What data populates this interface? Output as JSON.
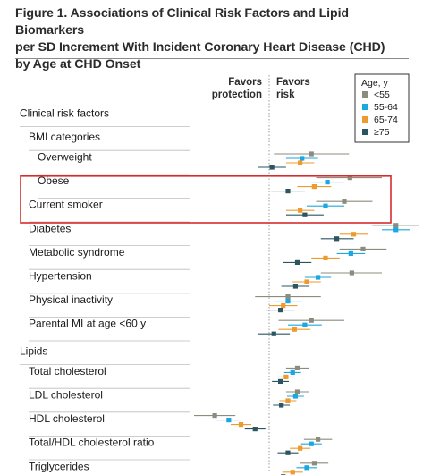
{
  "figure": {
    "title_lines": [
      "Figure 1. Associations of Clinical Risk Factors and Lipid Biomarkers",
      "per SD Increment With Incident Coronary Heart Disease (CHD)",
      "by Age at CHD Onset"
    ]
  },
  "colors": {
    "<55": "#8c8c7e",
    "55-64": "#1ba7e0",
    "65-74": "#ef9a2c",
    "≥75": "#2b5560",
    "highlight_box": "#d62c2c",
    "reference_line": "#9a9a9a"
  },
  "chart_data": {
    "type": "forest",
    "title": "",
    "header_left": [
      "Favors",
      "protection"
    ],
    "header_right": [
      "Favors",
      "risk"
    ],
    "legend": {
      "title": "Age, y",
      "entries": [
        "<55",
        "55-64",
        "65-74",
        "≥75"
      ],
      "position": "top-right"
    },
    "reference_value": 0,
    "xlim": [
      -0.9,
      1.5
    ],
    "highlighted_rows": [
      "Obese",
      "Current smoker"
    ],
    "rows": [
      {
        "label": "Clinical risk factors",
        "level": 0,
        "values": null
      },
      {
        "label": "BMI categories",
        "level": 1,
        "values": null
      },
      {
        "label": "Overweight",
        "level": 2,
        "values": [
          {
            "est": 0.45,
            "lo": 0.05,
            "hi": 0.85
          },
          {
            "est": 0.35,
            "lo": 0.18,
            "hi": 0.52
          },
          {
            "est": 0.33,
            "lo": 0.18,
            "hi": 0.48
          },
          {
            "est": 0.03,
            "lo": -0.12,
            "hi": 0.18
          }
        ]
      },
      {
        "label": "Obese",
        "level": 2,
        "values": [
          {
            "est": 0.86,
            "lo": 0.5,
            "hi": 1.2
          },
          {
            "est": 0.62,
            "lo": 0.45,
            "hi": 0.8
          },
          {
            "est": 0.48,
            "lo": 0.3,
            "hi": 0.66
          },
          {
            "est": 0.2,
            "lo": 0.02,
            "hi": 0.38
          }
        ]
      },
      {
        "label": "Current smoker",
        "level": 1,
        "values": [
          {
            "est": 0.8,
            "lo": 0.5,
            "hi": 1.1
          },
          {
            "est": 0.6,
            "lo": 0.4,
            "hi": 0.8
          },
          {
            "est": 0.33,
            "lo": 0.18,
            "hi": 0.48
          },
          {
            "est": 0.38,
            "lo": 0.18,
            "hi": 0.58
          }
        ]
      },
      {
        "label": "Diabetes",
        "level": 1,
        "values": [
          {
            "est": 1.35,
            "lo": 1.1,
            "hi": 1.6
          },
          {
            "est": 1.35,
            "lo": 1.2,
            "hi": 1.5
          },
          {
            "est": 0.9,
            "lo": 0.75,
            "hi": 1.05
          },
          {
            "est": 0.72,
            "lo": 0.55,
            "hi": 0.9
          }
        ]
      },
      {
        "label": "Metabolic syndrome",
        "level": 1,
        "values": [
          {
            "est": 1.0,
            "lo": 0.75,
            "hi": 1.25
          },
          {
            "est": 0.87,
            "lo": 0.72,
            "hi": 1.02
          },
          {
            "est": 0.6,
            "lo": 0.45,
            "hi": 0.75
          },
          {
            "est": 0.3,
            "lo": 0.15,
            "hi": 0.45
          }
        ]
      },
      {
        "label": "Hypertension",
        "level": 1,
        "values": [
          {
            "est": 0.88,
            "lo": 0.55,
            "hi": 1.2
          },
          {
            "est": 0.52,
            "lo": 0.38,
            "hi": 0.66
          },
          {
            "est": 0.4,
            "lo": 0.25,
            "hi": 0.55
          },
          {
            "est": 0.28,
            "lo": 0.13,
            "hi": 0.43
          }
        ]
      },
      {
        "label": "Physical inactivity",
        "level": 1,
        "values": [
          {
            "est": 0.2,
            "lo": -0.15,
            "hi": 0.55
          },
          {
            "est": 0.2,
            "lo": 0.05,
            "hi": 0.35
          },
          {
            "est": 0.15,
            "lo": 0.0,
            "hi": 0.3
          },
          {
            "est": 0.12,
            "lo": -0.03,
            "hi": 0.27
          }
        ]
      },
      {
        "label": "Parental MI at age <60 y",
        "level": 1,
        "values": [
          {
            "est": 0.45,
            "lo": 0.1,
            "hi": 0.8
          },
          {
            "est": 0.38,
            "lo": 0.2,
            "hi": 0.56
          },
          {
            "est": 0.27,
            "lo": 0.1,
            "hi": 0.44
          },
          {
            "est": 0.05,
            "lo": -0.12,
            "hi": 0.22
          }
        ]
      },
      {
        "label": "Lipids",
        "level": 0,
        "values": null
      },
      {
        "label": "Total cholesterol",
        "level": 1,
        "values": [
          {
            "est": 0.3,
            "lo": 0.18,
            "hi": 0.42
          },
          {
            "est": 0.25,
            "lo": 0.16,
            "hi": 0.34
          },
          {
            "est": 0.18,
            "lo": 0.09,
            "hi": 0.27
          },
          {
            "est": 0.12,
            "lo": 0.03,
            "hi": 0.21
          }
        ]
      },
      {
        "label": "LDL cholesterol",
        "level": 1,
        "values": [
          {
            "est": 0.3,
            "lo": 0.18,
            "hi": 0.42
          },
          {
            "est": 0.28,
            "lo": 0.19,
            "hi": 0.37
          },
          {
            "est": 0.2,
            "lo": 0.11,
            "hi": 0.29
          },
          {
            "est": 0.13,
            "lo": 0.04,
            "hi": 0.22
          }
        ]
      },
      {
        "label": "HDL cholesterol",
        "level": 1,
        "values": [
          {
            "est": -0.58,
            "lo": -0.8,
            "hi": -0.36
          },
          {
            "est": -0.43,
            "lo": -0.56,
            "hi": -0.3
          },
          {
            "est": -0.3,
            "lo": -0.41,
            "hi": -0.19
          },
          {
            "est": -0.15,
            "lo": -0.26,
            "hi": -0.04
          }
        ]
      },
      {
        "label": "Total/HDL cholesterol ratio",
        "level": 1,
        "values": [
          {
            "est": 0.52,
            "lo": 0.37,
            "hi": 0.67
          },
          {
            "est": 0.45,
            "lo": 0.34,
            "hi": 0.56
          },
          {
            "est": 0.33,
            "lo": 0.22,
            "hi": 0.44
          },
          {
            "est": 0.2,
            "lo": 0.09,
            "hi": 0.31
          }
        ]
      },
      {
        "label": "Triglycerides",
        "level": 1,
        "values": [
          {
            "est": 0.48,
            "lo": 0.33,
            "hi": 0.63
          },
          {
            "est": 0.4,
            "lo": 0.29,
            "hi": 0.51
          },
          {
            "est": 0.25,
            "lo": 0.14,
            "hi": 0.36
          },
          {
            "est": 0.15,
            "lo": 0.04,
            "hi": 0.26
          }
        ]
      }
    ]
  }
}
